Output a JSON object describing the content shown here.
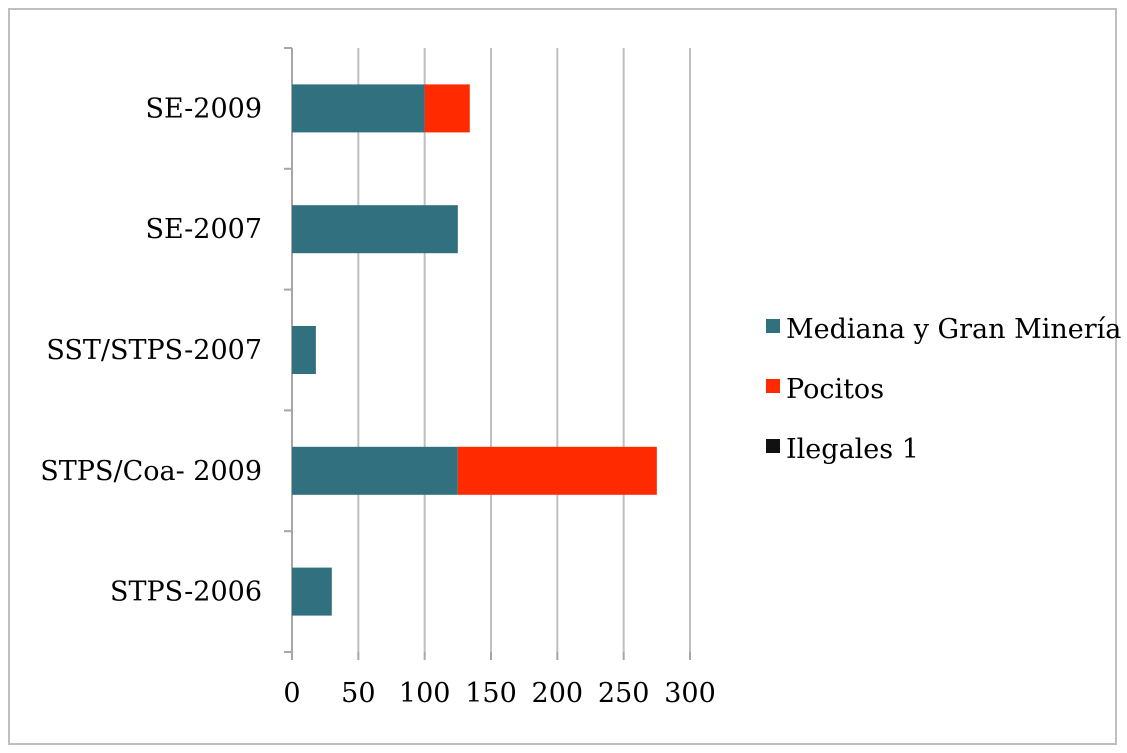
{
  "chart_data": {
    "type": "bar",
    "orientation": "horizontal",
    "stacked": true,
    "categories": [
      "SE-2009",
      "SE-2007",
      "SST/STPS-2007",
      "STPS/Coa- 2009",
      "STPS-2006"
    ],
    "series": [
      {
        "name": "Mediana y Gran Minería",
        "color": "#31707e",
        "values": [
          100,
          125,
          18,
          125,
          30
        ]
      },
      {
        "name": "Pocitos",
        "color": "#ff2a00",
        "values": [
          34,
          0,
          0,
          150,
          0
        ]
      },
      {
        "name": "Ilegales 1",
        "color": "#111111",
        "values": [
          0,
          0,
          0,
          0,
          0
        ]
      }
    ],
    "title": "",
    "xlabel": "",
    "ylabel": "",
    "xlim": [
      0,
      300
    ],
    "xticks": [
      "0",
      "50",
      "100",
      "150",
      "200",
      "250",
      "300"
    ],
    "grid": true,
    "legend_position": "right"
  }
}
